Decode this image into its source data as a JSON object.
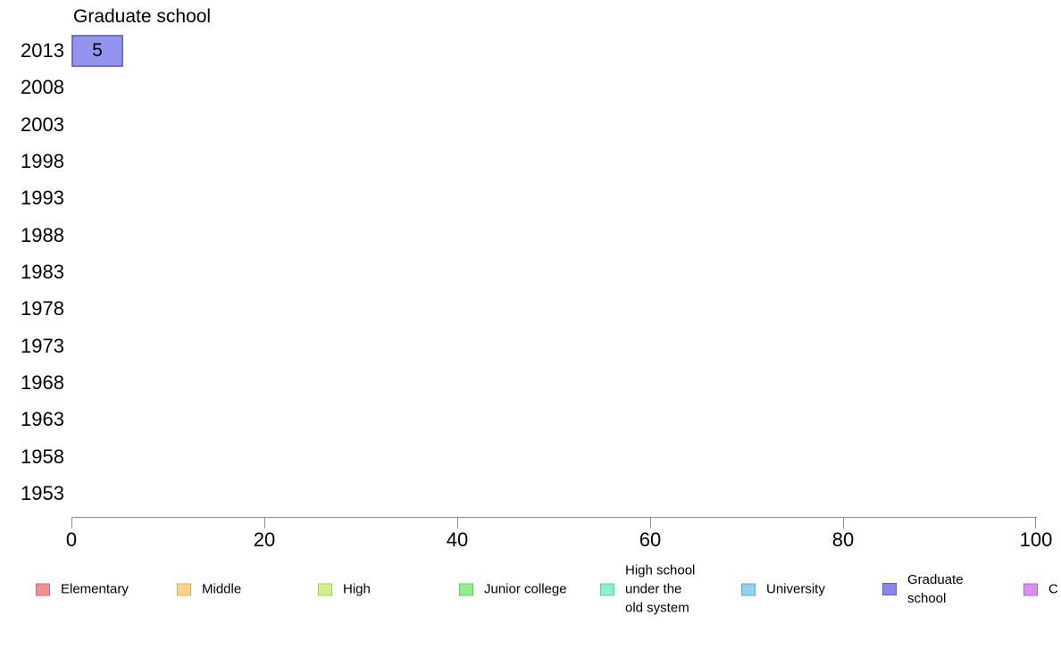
{
  "chart_data": {
    "type": "bar",
    "orientation": "horizontal",
    "title": "Graduate school",
    "xlabel": "",
    "ylabel": "",
    "categories": [
      "2013",
      "2008",
      "2003",
      "1998",
      "1993",
      "1988",
      "1983",
      "1978",
      "1973",
      "1968",
      "1963",
      "1958",
      "1953"
    ],
    "series": [
      {
        "name": "Graduate school",
        "values": [
          5,
          null,
          null,
          null,
          null,
          null,
          null,
          null,
          null,
          null,
          null,
          null,
          null
        ],
        "fill": "#9494ef",
        "border": "#6e6ed2"
      }
    ],
    "bar_value_labels": [
      "5"
    ],
    "xlim": [
      0,
      100
    ],
    "xticks": [
      0,
      20,
      40,
      60,
      80,
      100
    ],
    "grid": false,
    "axis_color": "#8c8c8c",
    "legend_position": "bottom",
    "legend": [
      {
        "label": "Elementary",
        "lines": [
          "Elementary"
        ],
        "fill": "#f59090",
        "border": "#cf6f6f"
      },
      {
        "label": "Middle",
        "lines": [
          "Middle"
        ],
        "fill": "#fcd38c",
        "border": "#d8ae62"
      },
      {
        "label": "High",
        "lines": [
          "High"
        ],
        "fill": "#cdf287",
        "border": "#a6cf58"
      },
      {
        "label": "Junior college",
        "lines": [
          "Junior college"
        ],
        "fill": "#8df08d",
        "border": "#5ecf5e"
      },
      {
        "label": "High school under the old system",
        "lines": [
          "High school",
          "under the",
          "old system"
        ],
        "fill": "#86f2ce",
        "border": "#58cfa6"
      },
      {
        "label": "University",
        "lines": [
          "University"
        ],
        "fill": "#90d2f4",
        "border": "#5fa9d4"
      },
      {
        "label": "Graduate school",
        "lines": [
          "Graduate",
          "school"
        ],
        "fill": "#8787ee",
        "border": "#5f5fd0"
      },
      {
        "label": "C",
        "lines": [
          "C"
        ],
        "fill": "#da8df2",
        "border": "#b55fd4",
        "clipped": true
      }
    ]
  }
}
